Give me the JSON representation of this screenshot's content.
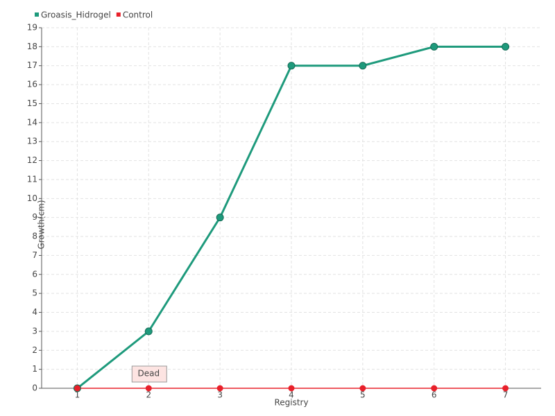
{
  "chart_data": {
    "type": "line",
    "x_label": "Registry",
    "y_label": "Growth(cm)",
    "categories": [
      "1",
      "2",
      "3",
      "4",
      "5",
      "6",
      "7"
    ],
    "series": [
      {
        "name": "Groasis_Hidrogel",
        "color": "#1e9a7c",
        "values": [
          0,
          3,
          9,
          17,
          17,
          18,
          18
        ]
      },
      {
        "name": "Control",
        "color": "#e8202a",
        "values": [
          0,
          0,
          0,
          0,
          0,
          0,
          0
        ]
      }
    ],
    "annotations": [
      {
        "text": "Dead",
        "x": "2"
      }
    ],
    "ylim": [
      0,
      19
    ],
    "yticks": [
      0,
      1,
      2,
      3,
      4,
      5,
      6,
      7,
      8,
      9,
      10,
      11,
      12,
      13,
      14,
      15,
      16,
      17,
      18,
      19
    ],
    "grid": true,
    "legend": "top-left"
  }
}
